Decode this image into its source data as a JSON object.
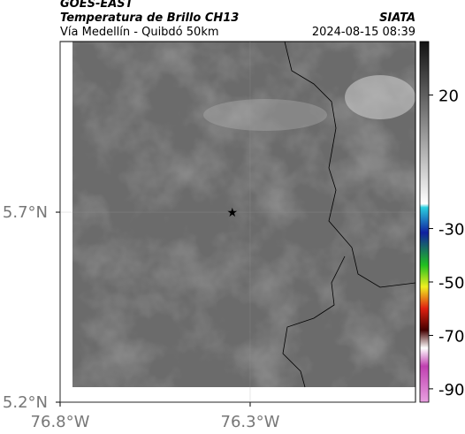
{
  "header": {
    "source": "GOES-EAST",
    "product": "Temperatura de Brillo CH13",
    "agency": "SIATA",
    "route": "Vía Medellín - Quibdó 50km",
    "datetime": "2024-08-15 08:39"
  },
  "map": {
    "xlim": [
      -76.8,
      -75.865
    ],
    "ylim": [
      5.2,
      6.149
    ],
    "xticks": [
      {
        "value": -76.8,
        "label": "76.8°W"
      },
      {
        "value": -76.3,
        "label": "76.3°W"
      }
    ],
    "yticks": [
      {
        "value": 5.2,
        "label": "5.2°N"
      },
      {
        "value": 5.7,
        "label": "5.7°N"
      }
    ],
    "marker": {
      "lon": -76.347,
      "lat": 5.7
    }
  },
  "colorbar": {
    "lim": [
      -95,
      40
    ],
    "ticks": [
      20,
      -30,
      -50,
      -70,
      -90
    ]
  }
}
